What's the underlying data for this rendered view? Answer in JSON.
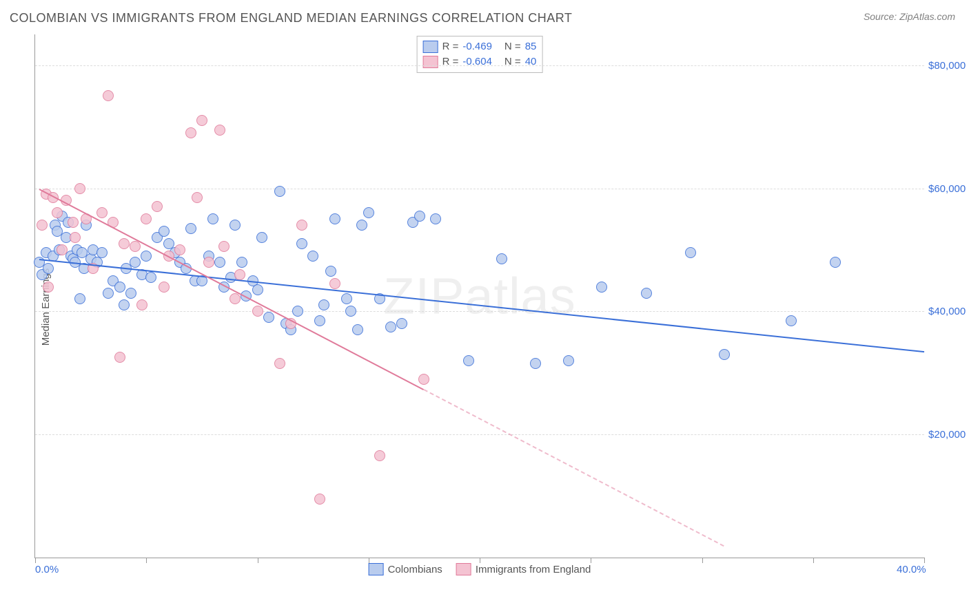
{
  "title": "COLOMBIAN VS IMMIGRANTS FROM ENGLAND MEDIAN EARNINGS CORRELATION CHART",
  "source_label": "Source: ZipAtlas.com",
  "ylabel": "Median Earnings",
  "watermark": "ZIPatlas",
  "chart": {
    "type": "scatter",
    "background_color": "#ffffff",
    "grid_color": "#dcdcdc",
    "axis_color": "#999999",
    "xlim": [
      0,
      40
    ],
    "ylim": [
      0,
      85000
    ],
    "x_ticks": [
      0,
      5,
      10,
      15,
      20,
      25,
      30,
      35,
      40
    ],
    "x_tick_labels": {
      "0": "0.0%",
      "40": "40.0%"
    },
    "y_gridlines": [
      20000,
      40000,
      60000,
      80000
    ],
    "y_tick_labels": {
      "20000": "$20,000",
      "40000": "$40,000",
      "60000": "$60,000",
      "80000": "$80,000"
    },
    "marker_radius": 8,
    "marker_stroke_width": 1.5,
    "marker_fill_opacity": 0.22,
    "series": [
      {
        "key": "colombians",
        "label": "Colombians",
        "stroke": "#3a6fd8",
        "fill": "#b9ccee",
        "R": "-0.469",
        "N": "85",
        "trend": {
          "x1": 0.2,
          "y1": 48500,
          "x2": 40,
          "y2": 33500,
          "solid_until_x": 40,
          "width": 2.5
        },
        "points": [
          [
            0.2,
            48000
          ],
          [
            0.3,
            46000
          ],
          [
            0.5,
            49500
          ],
          [
            0.6,
            47000
          ],
          [
            0.8,
            49000
          ],
          [
            0.9,
            54000
          ],
          [
            1.0,
            53000
          ],
          [
            1.1,
            50000
          ],
          [
            1.2,
            55500
          ],
          [
            1.4,
            52000
          ],
          [
            1.5,
            54500
          ],
          [
            1.6,
            49000
          ],
          [
            1.7,
            48500
          ],
          [
            1.8,
            48000
          ],
          [
            1.9,
            50000
          ],
          [
            2.0,
            42000
          ],
          [
            2.1,
            49500
          ],
          [
            2.2,
            47000
          ],
          [
            2.3,
            54000
          ],
          [
            2.5,
            48500
          ],
          [
            2.6,
            50000
          ],
          [
            2.8,
            48000
          ],
          [
            3.0,
            49500
          ],
          [
            3.3,
            43000
          ],
          [
            3.5,
            45000
          ],
          [
            3.8,
            44000
          ],
          [
            4.0,
            41000
          ],
          [
            4.1,
            47000
          ],
          [
            4.3,
            43000
          ],
          [
            4.5,
            48000
          ],
          [
            4.8,
            46000
          ],
          [
            5.0,
            49000
          ],
          [
            5.2,
            45500
          ],
          [
            5.5,
            52000
          ],
          [
            5.8,
            53000
          ],
          [
            6.0,
            51000
          ],
          [
            6.3,
            49500
          ],
          [
            6.5,
            48000
          ],
          [
            6.8,
            47000
          ],
          [
            7.0,
            53500
          ],
          [
            7.2,
            45000
          ],
          [
            7.5,
            45000
          ],
          [
            7.8,
            49000
          ],
          [
            8.0,
            55000
          ],
          [
            8.3,
            48000
          ],
          [
            8.5,
            44000
          ],
          [
            8.8,
            45500
          ],
          [
            9.0,
            54000
          ],
          [
            9.3,
            48000
          ],
          [
            9.5,
            42500
          ],
          [
            9.8,
            45000
          ],
          [
            10.0,
            43500
          ],
          [
            10.2,
            52000
          ],
          [
            10.5,
            39000
          ],
          [
            11.0,
            59500
          ],
          [
            11.3,
            38000
          ],
          [
            11.5,
            37000
          ],
          [
            11.8,
            40000
          ],
          [
            12.0,
            51000
          ],
          [
            12.5,
            49000
          ],
          [
            12.8,
            38500
          ],
          [
            13.0,
            41000
          ],
          [
            13.3,
            46500
          ],
          [
            13.5,
            55000
          ],
          [
            14.0,
            42000
          ],
          [
            14.2,
            40000
          ],
          [
            14.5,
            37000
          ],
          [
            14.7,
            54000
          ],
          [
            15.0,
            56000
          ],
          [
            15.5,
            42000
          ],
          [
            16.0,
            37500
          ],
          [
            16.5,
            38000
          ],
          [
            17.0,
            54500
          ],
          [
            17.3,
            55500
          ],
          [
            18.0,
            55000
          ],
          [
            19.5,
            32000
          ],
          [
            21.0,
            48500
          ],
          [
            22.5,
            31500
          ],
          [
            24.0,
            32000
          ],
          [
            25.5,
            44000
          ],
          [
            27.5,
            43000
          ],
          [
            29.5,
            49500
          ],
          [
            31.0,
            33000
          ],
          [
            34.0,
            38500
          ],
          [
            36.0,
            48000
          ]
        ]
      },
      {
        "key": "england",
        "label": "Immigrants from England",
        "stroke": "#e07a9a",
        "fill": "#f4c3d2",
        "R": "-0.604",
        "N": "40",
        "trend": {
          "x1": 0.2,
          "y1": 60000,
          "x2": 31,
          "y2": 2000,
          "solid_until_x": 17.5,
          "width": 2.5
        },
        "points": [
          [
            0.3,
            54000
          ],
          [
            0.5,
            59000
          ],
          [
            0.6,
            44000
          ],
          [
            0.8,
            58500
          ],
          [
            1.0,
            56000
          ],
          [
            1.2,
            50000
          ],
          [
            1.4,
            58000
          ],
          [
            1.7,
            54500
          ],
          [
            1.8,
            52000
          ],
          [
            2.0,
            60000
          ],
          [
            2.3,
            55000
          ],
          [
            2.6,
            47000
          ],
          [
            3.0,
            56000
          ],
          [
            3.3,
            75000
          ],
          [
            3.5,
            54500
          ],
          [
            3.8,
            32500
          ],
          [
            4.0,
            51000
          ],
          [
            4.5,
            50500
          ],
          [
            4.8,
            41000
          ],
          [
            5.0,
            55000
          ],
          [
            5.5,
            57000
          ],
          [
            5.8,
            44000
          ],
          [
            6.0,
            49000
          ],
          [
            6.5,
            50000
          ],
          [
            7.0,
            69000
          ],
          [
            7.3,
            58500
          ],
          [
            7.5,
            71000
          ],
          [
            7.8,
            48000
          ],
          [
            8.3,
            69500
          ],
          [
            8.5,
            50500
          ],
          [
            9.0,
            42000
          ],
          [
            9.2,
            46000
          ],
          [
            10.0,
            40000
          ],
          [
            11.0,
            31500
          ],
          [
            11.5,
            38000
          ],
          [
            12.0,
            54000
          ],
          [
            12.8,
            9500
          ],
          [
            13.5,
            44500
          ],
          [
            15.5,
            16500
          ],
          [
            17.5,
            29000
          ]
        ]
      }
    ]
  }
}
